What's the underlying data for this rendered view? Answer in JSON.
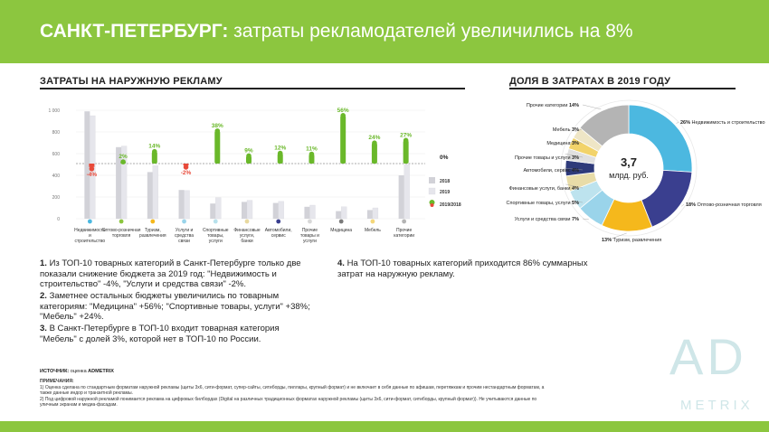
{
  "header": {
    "title_bold": "САНКТ-ПЕТЕРБУРГ:",
    "title_rest": " затраты рекламодателей увеличились на 8%"
  },
  "left_section_title": "ЗАТРАТЫ НА НАРУЖНУЮ РЕКЛАМУ",
  "right_section_title": "ДОЛЯ В ЗАТРАТАХ В 2019 ГОДУ",
  "colors": {
    "accent": "#8cc63f",
    "bar_2018": "#d2d2d8",
    "bar_2019": "#e6e6ec",
    "growth": "#6ab82a",
    "decline": "#e84a3a"
  },
  "chart_data": [
    {
      "type": "bar",
      "categories": [
        "Недвижимость и строительство",
        "Оптово-розничная торговля",
        "Туризм, развлечения",
        "Услуги и средства связи",
        "Спортивные товары, услуги",
        "Финансовые услуги, банки",
        "Автомобили, сервис",
        "Прочие товары и услуги",
        "Медицина",
        "Мебель",
        "Прочие категории"
      ],
      "series": [
        {
          "name": "2018",
          "values": [
            990,
            660,
            430,
            265,
            140,
            155,
            145,
            110,
            70,
            80,
            400
          ]
        },
        {
          "name": "2019",
          "values": [
            950,
            670,
            490,
            260,
            195,
            170,
            160,
            125,
            110,
            100,
            500
          ]
        },
        {
          "name": "2019/2018",
          "values": [
            -4,
            2,
            14,
            -2,
            38,
            9,
            12,
            11,
            56,
            24,
            27
          ]
        }
      ],
      "value_labels": [
        "-4%",
        "2%",
        "14%",
        "-2%",
        "38%",
        "9%",
        "12%",
        "11%",
        "56%",
        "24%",
        "27%"
      ],
      "zero_label": "0%",
      "y_ticks": [
        "1 000",
        "800",
        "600",
        "400",
        "200",
        "0"
      ],
      "ylim": [
        0,
        1000
      ],
      "category_icon_colors": [
        "#4cb8e0",
        "#8cc63f",
        "#f5b81c",
        "#9ad4ea",
        "#b8e1ec",
        "#e8d9a0",
        "#3a3f8f",
        "#d8d8d8",
        "#7a7a7a",
        "#f4d77a",
        "#b4b4b4"
      ]
    },
    {
      "type": "pie",
      "center_value": "3,7",
      "center_unit": "млрд. руб.",
      "slices": [
        {
          "label": "Недвижимость и строительство",
          "value": 26,
          "pct": "26%",
          "color": "#4cb8e0"
        },
        {
          "label": "Оптово-розничная торговля",
          "value": 18,
          "pct": "18%",
          "color": "#3a3f8f"
        },
        {
          "label": "Туризм, развлечения",
          "value": 13,
          "pct": "13%",
          "color": "#f5b81c"
        },
        {
          "label": "Услуги и средства связи",
          "value": 7,
          "pct": "7%",
          "color": "#9ad4ea"
        },
        {
          "label": "Спортивные товары, услуги",
          "value": 5,
          "pct": "5%",
          "color": "#bde3ee"
        },
        {
          "label": "Финансовые услуги, банки",
          "value": 4,
          "pct": "4%",
          "color": "#e8dca8"
        },
        {
          "label": "Автомобили, сервис",
          "value": 4,
          "pct": "4%",
          "color": "#2e3a7a"
        },
        {
          "label": "Прочие товары и услуги",
          "value": 3,
          "pct": "3%",
          "color": "#e0e0e0"
        },
        {
          "label": "Медицина",
          "value": 3,
          "pct": "3%",
          "color": "#f2d36a"
        },
        {
          "label": "Мебель",
          "value": 3,
          "pct": "3%",
          "color": "#efe6c6"
        },
        {
          "label": "Прочие категории",
          "value": 14,
          "pct": "14%",
          "color": "#b4b4b4"
        }
      ]
    }
  ],
  "legend": {
    "y2018": "2018",
    "y2019": "2019",
    "ratio": "2019/2018"
  },
  "notes": {
    "n1_bold": "1.",
    "n1_text": " Из ТОП-10 товарных категорий в Санкт-Петербурге только две показали снижение бюджета за 2019 год: \"Недвижимость и строительство\" -4%, \"Услуги и средства связи\" -2%.",
    "n2_bold": "2.",
    "n2_text": " Заметнее остальных бюджеты увеличились по товарным категориям: \"Медицина\" +56%; \"Спортивные товары, услуги\" +38%; \"Мебель\" +24%.",
    "n3_bold": "3.",
    "n3_text": " В Санкт-Петербурге в ТОП-10 входит товарная категория \"Мебель\" с долей 3%, которой нет в ТОП-10 по России.",
    "n4_bold": "4.",
    "n4_text": " На ТОП-10 товарных категорий приходится 86% суммарных затрат на наружную рекламу."
  },
  "source": {
    "label": "ИСТОЧНИК:",
    "text": " оценка ",
    "brand": "ADMETRIX"
  },
  "remarks": {
    "title": "ПРИМЕЧАНИЯ:",
    "r1": "1) Оценка сделана по стандартным форматам наружной рекламы (щиты 3х6, сити-формат, супер-сайты, ситиборды, пиллары, крупный формат) и не включает в себя данные по афишам, перетяжкам и прочим нестандартным форматам, а также данные индор и транзитной рекламы.",
    "r2": "2) Под цифровой наружной рекламой понимается реклама на цифровых билбордах (Digital на различных традиционных форматах наружной рекламы (щиты 3х6, сити-формат, ситиборды, крупный формат)). Не учитываются данные по уличным экранам и медиа-фасадам."
  },
  "logo": {
    "ad": "AD",
    "metrix": "METRIX"
  }
}
